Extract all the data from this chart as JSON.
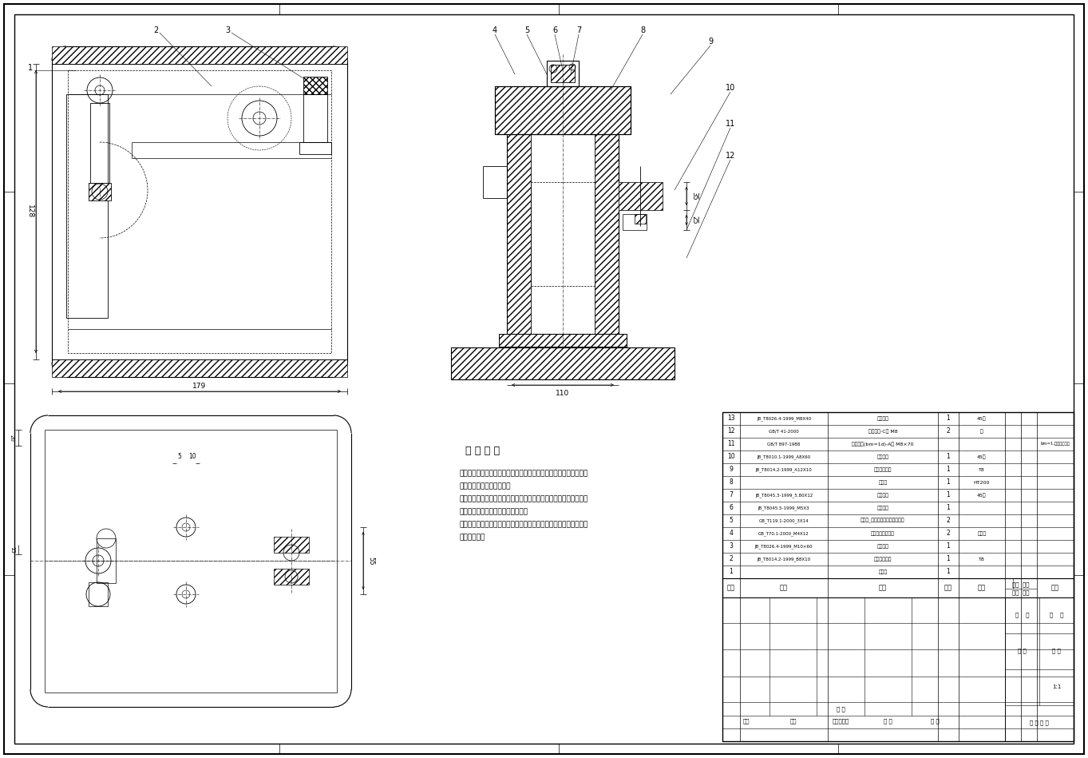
{
  "bg": "#ffffff",
  "lc": "#000000",
  "parts_list": [
    {
      "seq": "13",
      "code": "JB_T8026.4-1999_M8X40",
      "name": "调节支承",
      "qty": "1",
      "material": "45钢",
      "note": ""
    },
    {
      "seq": "12",
      "code": "GB/T 41-2000",
      "name": "六角螺母-C级 M8",
      "qty": "2",
      "material": "钢",
      "note": ""
    },
    {
      "seq": "11",
      "code": "GB/T 897-1988",
      "name": "双头螺柱(bm=1d)-A型 M8×70",
      "qty": "",
      "material": "",
      "note": "bm=1,借用于钢制件"
    },
    {
      "seq": "10",
      "code": "JB_T8010.1-1999_A8X60",
      "name": "移动压板",
      "qty": "1",
      "material": "45钢",
      "note": ""
    },
    {
      "seq": "9",
      "code": "JB_T8014.2-1999_A12X10",
      "name": "固定式定位销",
      "qty": "1",
      "material": "T8",
      "note": ""
    },
    {
      "seq": "8",
      "code": "",
      "name": "钻模板",
      "qty": "1",
      "material": "HT200",
      "note": ""
    },
    {
      "seq": "7",
      "code": "JB_T8045.3-1999_5.80X12",
      "name": "快换钻套",
      "qty": "1",
      "material": "45钢",
      "note": ""
    },
    {
      "seq": "6",
      "code": "JB_T8045.5-1999_M5X3",
      "name": "钻套螺钉",
      "qty": "1",
      "material": "",
      "note": ""
    },
    {
      "seq": "5",
      "code": "GB_T119.1-2000_3X14",
      "name": "圆柱销_不淬硬钢和奥氏体不锈钢",
      "qty": "2",
      "material": "",
      "note": ""
    },
    {
      "seq": "4",
      "code": "GB_T70.1-2000_M4X12",
      "name": "内六角圆柱头螺钉",
      "qty": "2",
      "material": "不锈钢",
      "note": ""
    },
    {
      "seq": "3",
      "code": "JB_T8026.4-1999_M10×60",
      "name": "调节支撑",
      "qty": "1",
      "material": "",
      "note": ""
    },
    {
      "seq": "2",
      "code": "JB_T8014.2-1999_B8X10",
      "name": "固定式定位销",
      "qty": "1",
      "material": "T8",
      "note": ""
    },
    {
      "seq": "1",
      "code": "",
      "name": "夹具体",
      "qty": "1",
      "material": "",
      "note": ""
    }
  ],
  "tech_title": "技 术 要 求",
  "tech_lines": [
    "进入装配的零件及部件（包括外购件、外协件），均必须具有检验部",
    "门的合格证方能进行装配。",
    "零件在装配前必须清理和清洗干净，不得有毛刺、飞边、氧化皮、锈",
    "蚀、切屑、油污、着色剂和灰尘等。",
    "装配前应对零、部件的主要配合尺寸，特别是过盈配合尺寸及相关精",
    "度进行复查。"
  ]
}
